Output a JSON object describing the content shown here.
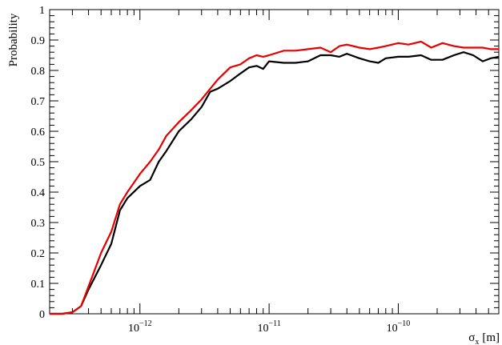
{
  "chart_data": {
    "type": "line",
    "title": "",
    "xlabel": "σx [m]",
    "xlabel_parts": {
      "symbol": "σ",
      "subscript": "x",
      "unit": "[m]"
    },
    "ylabel": "Probability",
    "xscale": "log",
    "xlim": [
      2e-13,
      6e-10
    ],
    "ylim": [
      0,
      1
    ],
    "grid": false,
    "legend": "none",
    "x_ticks": [
      {
        "value": 1e-12,
        "base": "10",
        "exp": "−12"
      },
      {
        "value": 1e-11,
        "base": "10",
        "exp": "−11"
      },
      {
        "value": 1e-10,
        "base": "10",
        "exp": "−10"
      }
    ],
    "y_ticks": [
      "0",
      "0.1",
      "0.2",
      "0.3",
      "0.4",
      "0.5",
      "0.6",
      "0.7",
      "0.8",
      "0.9",
      "1"
    ],
    "series": [
      {
        "color": "#000000",
        "points": [
          [
            2e-13,
            0
          ],
          [
            2.5e-13,
            0
          ],
          [
            3e-13,
            0.005
          ],
          [
            3.5e-13,
            0.025
          ],
          [
            4e-13,
            0.08
          ],
          [
            5e-13,
            0.16
          ],
          [
            6e-13,
            0.23
          ],
          [
            7e-13,
            0.34
          ],
          [
            8e-13,
            0.38
          ],
          [
            1e-12,
            0.42
          ],
          [
            1.2e-12,
            0.44
          ],
          [
            1.4e-12,
            0.5
          ],
          [
            1.6e-12,
            0.535
          ],
          [
            2e-12,
            0.6
          ],
          [
            2.5e-12,
            0.64
          ],
          [
            3e-12,
            0.68
          ],
          [
            3.5e-12,
            0.73
          ],
          [
            4e-12,
            0.74
          ],
          [
            5e-12,
            0.765
          ],
          [
            6e-12,
            0.79
          ],
          [
            7e-12,
            0.81
          ],
          [
            8e-12,
            0.815
          ],
          [
            9e-12,
            0.805
          ],
          [
            1e-11,
            0.83
          ],
          [
            1.3e-11,
            0.825
          ],
          [
            1.6e-11,
            0.825
          ],
          [
            2e-11,
            0.83
          ],
          [
            2.5e-11,
            0.85
          ],
          [
            3e-11,
            0.85
          ],
          [
            3.5e-11,
            0.845
          ],
          [
            4e-11,
            0.855
          ],
          [
            5e-11,
            0.84
          ],
          [
            6e-11,
            0.83
          ],
          [
            7e-11,
            0.825
          ],
          [
            8e-11,
            0.84
          ],
          [
            1e-10,
            0.845
          ],
          [
            1.2e-10,
            0.845
          ],
          [
            1.5e-10,
            0.85
          ],
          [
            1.8e-10,
            0.835
          ],
          [
            2.2e-10,
            0.835
          ],
          [
            2.7e-10,
            0.85
          ],
          [
            3.2e-10,
            0.86
          ],
          [
            3.8e-10,
            0.85
          ],
          [
            4.5e-10,
            0.83
          ],
          [
            5.2e-10,
            0.84
          ],
          [
            6e-10,
            0.845
          ]
        ]
      },
      {
        "color": "#e60000",
        "points": [
          [
            2e-13,
            0
          ],
          [
            2.5e-13,
            0
          ],
          [
            3e-13,
            0.005
          ],
          [
            3.5e-13,
            0.025
          ],
          [
            4e-13,
            0.09
          ],
          [
            5e-13,
            0.2
          ],
          [
            6e-13,
            0.27
          ],
          [
            7e-13,
            0.36
          ],
          [
            8e-13,
            0.4
          ],
          [
            1e-12,
            0.46
          ],
          [
            1.2e-12,
            0.5
          ],
          [
            1.4e-12,
            0.54
          ],
          [
            1.6e-12,
            0.585
          ],
          [
            2e-12,
            0.63
          ],
          [
            2.5e-12,
            0.67
          ],
          [
            3e-12,
            0.705
          ],
          [
            3.5e-12,
            0.74
          ],
          [
            4e-12,
            0.77
          ],
          [
            5e-12,
            0.81
          ],
          [
            6e-12,
            0.82
          ],
          [
            7e-12,
            0.84
          ],
          [
            8e-12,
            0.85
          ],
          [
            9e-12,
            0.845
          ],
          [
            1e-11,
            0.85
          ],
          [
            1.3e-11,
            0.865
          ],
          [
            1.6e-11,
            0.865
          ],
          [
            2e-11,
            0.87
          ],
          [
            2.5e-11,
            0.875
          ],
          [
            3e-11,
            0.86
          ],
          [
            3.5e-11,
            0.88
          ],
          [
            4e-11,
            0.885
          ],
          [
            5e-11,
            0.875
          ],
          [
            6e-11,
            0.87
          ],
          [
            7e-11,
            0.875
          ],
          [
            8e-11,
            0.88
          ],
          [
            1e-10,
            0.89
          ],
          [
            1.2e-10,
            0.885
          ],
          [
            1.5e-10,
            0.895
          ],
          [
            1.8e-10,
            0.875
          ],
          [
            2.2e-10,
            0.89
          ],
          [
            2.7e-10,
            0.88
          ],
          [
            3.2e-10,
            0.875
          ],
          [
            3.8e-10,
            0.875
          ],
          [
            4.5e-10,
            0.875
          ],
          [
            5.2e-10,
            0.87
          ],
          [
            6e-10,
            0.87
          ]
        ]
      }
    ]
  }
}
